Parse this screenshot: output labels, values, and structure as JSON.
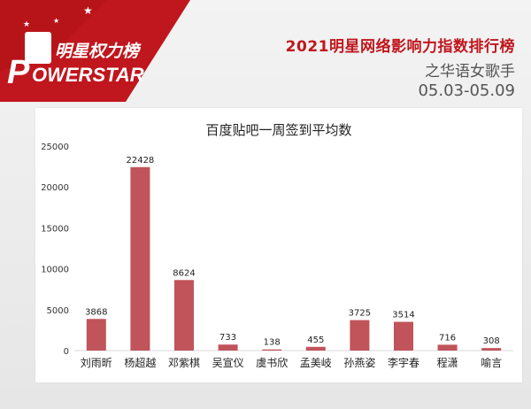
{
  "brand": {
    "logo_cn": "明星权力榜",
    "logo_en": "OWERSTAR",
    "logo_letter": "P"
  },
  "header": {
    "title": "2021明星网络影响力指数排行榜",
    "subtitle": "之华语女歌手",
    "date_range": "05.03-05.09"
  },
  "colors": {
    "brand_red": "#c0161d",
    "bar": "#c0545a"
  },
  "chart_data": {
    "type": "bar",
    "title": "百度贴吧一周签到平均数",
    "xlabel": "",
    "ylabel": "",
    "ylim": [
      0,
      25000
    ],
    "yticks": [
      "0",
      "5000",
      "10000",
      "15000",
      "20000",
      "25000"
    ],
    "grid": false,
    "legend": "none",
    "categories": [
      "刘雨昕",
      "杨超越",
      "邓紫棋",
      "吴宣仪",
      "虞书欣",
      "孟美岐",
      "孙燕姿",
      "李宇春",
      "程潇",
      "喻言"
    ],
    "values": [
      3868,
      22428,
      8624,
      733,
      138,
      455,
      3725,
      3514,
      716,
      308
    ],
    "data_labels": [
      "3868",
      "22428",
      "8624",
      "733",
      "138",
      "455",
      "3725",
      "3514",
      "716",
      "308"
    ]
  }
}
